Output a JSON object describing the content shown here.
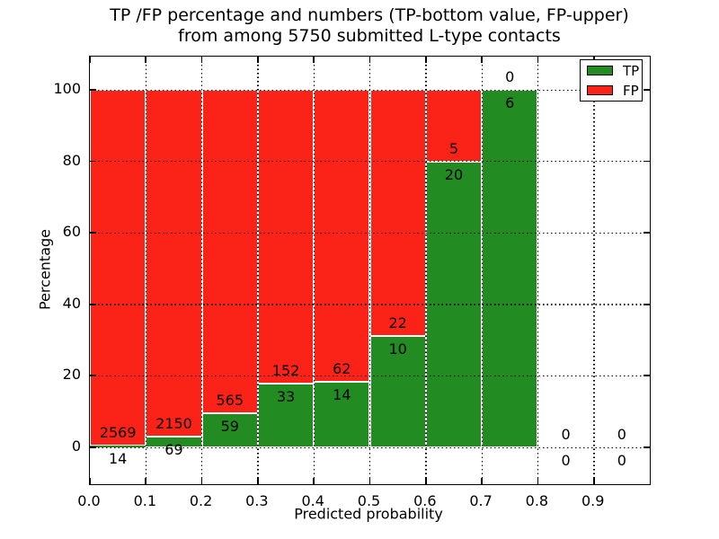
{
  "title": {
    "line1": "TP /FP percentage and numbers (TP-bottom value, FP-upper)",
    "line2": "from among 5750 submitted L-type contacts"
  },
  "axes": {
    "x_label": "Predicted probability",
    "y_label": "Percentage",
    "x_ticks": [
      0.0,
      0.1,
      0.2,
      0.3,
      0.4,
      0.5,
      0.6,
      0.7,
      0.8,
      0.9
    ],
    "x_tick_labels": [
      "0.0",
      "0.1",
      "0.2",
      "0.3",
      "0.4",
      "0.5",
      "0.6",
      "0.7",
      "0.8",
      "0.9"
    ],
    "y_ticks": [
      0,
      20,
      40,
      60,
      80,
      100
    ],
    "y_tick_labels": [
      "0",
      "20",
      "40",
      "60",
      "80",
      "100"
    ]
  },
  "legend": {
    "items": [
      {
        "label": "TP",
        "color": "#228b22"
      },
      {
        "label": "FP",
        "color": "#fb2318"
      }
    ]
  },
  "colors": {
    "tp": "#228b22",
    "fp": "#fb2318",
    "grid": "#000000",
    "background": "#ffffff"
  },
  "chart_data": {
    "type": "bar",
    "stacked": true,
    "title": "TP /FP percentage and numbers (TP-bottom value, FP-upper) from among 5750 submitted L-type contacts",
    "xlabel": "Predicted probability",
    "ylabel": "Percentage",
    "xlim": [
      0.0,
      1.0
    ],
    "ylim": [
      -10,
      110
    ],
    "grid": true,
    "legend_position": "upper right",
    "total_contacts": 5750,
    "bin_width": 0.1,
    "categories": [
      "0.0-0.1",
      "0.1-0.2",
      "0.2-0.3",
      "0.3-0.4",
      "0.4-0.5",
      "0.5-0.6",
      "0.6-0.7",
      "0.7-0.8",
      "0.8-0.9",
      "0.9-1.0"
    ],
    "bin_starts": [
      0.0,
      0.1,
      0.2,
      0.3,
      0.4,
      0.5,
      0.6,
      0.7,
      0.8,
      0.9
    ],
    "series": [
      {
        "name": "TP",
        "counts": [
          14,
          69,
          59,
          33,
          14,
          10,
          20,
          6,
          0,
          0
        ],
        "pct": [
          0.54,
          3.11,
          9.46,
          17.84,
          18.42,
          31.25,
          80.0,
          100.0,
          0,
          0
        ]
      },
      {
        "name": "FP",
        "counts": [
          2569,
          2150,
          565,
          152,
          62,
          22,
          5,
          0,
          0,
          0
        ],
        "pct": [
          99.46,
          96.89,
          90.54,
          82.16,
          81.58,
          68.75,
          20.0,
          0.0,
          0,
          0
        ]
      }
    ]
  }
}
